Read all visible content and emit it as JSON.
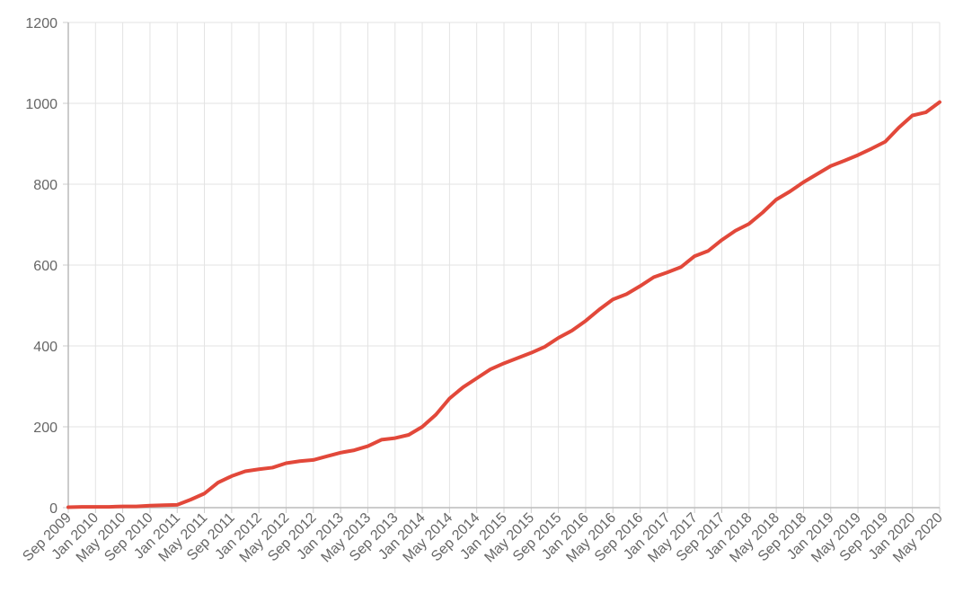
{
  "chart_data": {
    "type": "line",
    "color": "#e2483a",
    "grid": true,
    "x": [
      "2009-09",
      "2009-11",
      "2010-01",
      "2010-03",
      "2010-05",
      "2010-07",
      "2010-09",
      "2010-11",
      "2011-01",
      "2011-03",
      "2011-05",
      "2011-07",
      "2011-09",
      "2011-11",
      "2012-01",
      "2012-03",
      "2012-05",
      "2012-07",
      "2012-09",
      "2012-11",
      "2013-01",
      "2013-03",
      "2013-05",
      "2013-07",
      "2013-09",
      "2013-11",
      "2014-01",
      "2014-03",
      "2014-05",
      "2014-07",
      "2014-09",
      "2014-11",
      "2015-01",
      "2015-03",
      "2015-05",
      "2015-07",
      "2015-09",
      "2015-11",
      "2016-01",
      "2016-03",
      "2016-05",
      "2016-07",
      "2016-09",
      "2016-11",
      "2017-01",
      "2017-03",
      "2017-05",
      "2017-07",
      "2017-09",
      "2017-11",
      "2018-01",
      "2018-03",
      "2018-05",
      "2018-07",
      "2018-09",
      "2018-11",
      "2019-01",
      "2019-03",
      "2019-05",
      "2019-07",
      "2019-09",
      "2019-11",
      "2020-01",
      "2020-03",
      "2020-05"
    ],
    "values": [
      1,
      2,
      2,
      2,
      3,
      3,
      5,
      6,
      7,
      20,
      35,
      62,
      78,
      90,
      95,
      99,
      110,
      115,
      118,
      127,
      136,
      142,
      152,
      168,
      172,
      180,
      200,
      230,
      270,
      298,
      320,
      342,
      357,
      370,
      383,
      398,
      420,
      438,
      462,
      490,
      515,
      528,
      548,
      570,
      582,
      595,
      622,
      635,
      662,
      685,
      702,
      730,
      762,
      782,
      805,
      825,
      845,
      858,
      872,
      888,
      905,
      940,
      970,
      978,
      1003
    ],
    "xlim": [
      "2009-09",
      "2020-05"
    ],
    "xticks": [
      {
        "value": "2009-09",
        "label": "Sep 2009"
      },
      {
        "value": "2010-01",
        "label": "Jan 2010"
      },
      {
        "value": "2010-05",
        "label": "May 2010"
      },
      {
        "value": "2010-09",
        "label": "Sep 2010"
      },
      {
        "value": "2011-01",
        "label": "Jan 2011"
      },
      {
        "value": "2011-05",
        "label": "May 2011"
      },
      {
        "value": "2011-09",
        "label": "Sep 2011"
      },
      {
        "value": "2012-01",
        "label": "Jan 2012"
      },
      {
        "value": "2012-05",
        "label": "May 2012"
      },
      {
        "value": "2012-09",
        "label": "Sep 2012"
      },
      {
        "value": "2013-01",
        "label": "Jan 2013"
      },
      {
        "value": "2013-05",
        "label": "May 2013"
      },
      {
        "value": "2013-09",
        "label": "Sep 2013"
      },
      {
        "value": "2014-01",
        "label": "Jan 2014"
      },
      {
        "value": "2014-05",
        "label": "May 2014"
      },
      {
        "value": "2014-09",
        "label": "Sep 2014"
      },
      {
        "value": "2015-01",
        "label": "Jan 2015"
      },
      {
        "value": "2015-05",
        "label": "May 2015"
      },
      {
        "value": "2015-09",
        "label": "Sep 2015"
      },
      {
        "value": "2016-01",
        "label": "Jan 2016"
      },
      {
        "value": "2016-05",
        "label": "May 2016"
      },
      {
        "value": "2016-09",
        "label": "Sep 2016"
      },
      {
        "value": "2017-01",
        "label": "Jan 2017"
      },
      {
        "value": "2017-05",
        "label": "May 2017"
      },
      {
        "value": "2017-09",
        "label": "Sep 2017"
      },
      {
        "value": "2018-01",
        "label": "Jan 2018"
      },
      {
        "value": "2018-05",
        "label": "May 2018"
      },
      {
        "value": "2018-09",
        "label": "Sep 2018"
      },
      {
        "value": "2019-01",
        "label": "Jan 2019"
      },
      {
        "value": "2019-05",
        "label": "May 2019"
      },
      {
        "value": "2019-09",
        "label": "Sep 2019"
      },
      {
        "value": "2020-01",
        "label": "Jan 2020"
      },
      {
        "value": "2020-05",
        "label": "May 2020"
      }
    ],
    "ylim": [
      0,
      1200
    ],
    "yticks": [
      0,
      200,
      400,
      600,
      800,
      1000,
      1200
    ]
  }
}
